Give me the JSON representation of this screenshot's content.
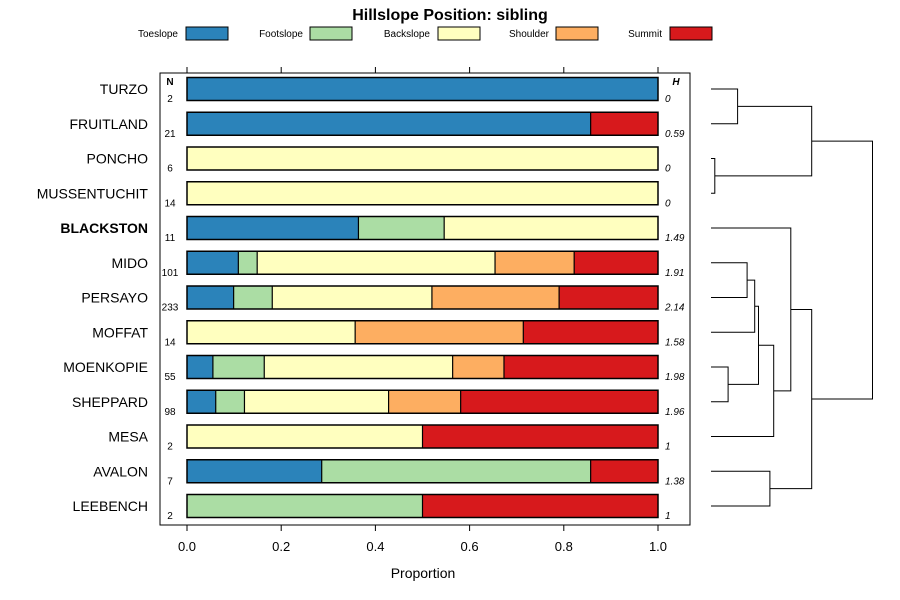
{
  "chart_data": {
    "type": "bar",
    "stacked": true,
    "orientation": "horizontal",
    "title": "Hillslope Position: sibling",
    "xlabel": "Proportion",
    "xlim": [
      0,
      1
    ],
    "xticks": [
      "0.0",
      "0.2",
      "0.4",
      "0.6",
      "0.8",
      "1.0"
    ],
    "n_header": "N",
    "h_header": "H",
    "legend_position": "top",
    "categories": [
      "TURZO",
      "FRUITLAND",
      "PONCHO",
      "MUSSENTUCHIT",
      "BLACKSTON",
      "MIDO",
      "PERSAYO",
      "MOFFAT",
      "MOENKOPIE",
      "SHEPPARD",
      "MESA",
      "AVALON",
      "LEEBENCH"
    ],
    "highlighted": "BLACKSTON",
    "n": [
      "2",
      "21",
      "6",
      "14",
      "11",
      "101",
      "233",
      "14",
      "55",
      "98",
      "2",
      "7",
      "2"
    ],
    "h": [
      "0",
      "0.59",
      "0",
      "0",
      "1.49",
      "1.91",
      "2.14",
      "1.58",
      "1.98",
      "1.96",
      "1",
      "1.38",
      "1"
    ],
    "series": [
      {
        "name": "Toeslope",
        "color": "#2b83ba",
        "values": [
          1.0,
          0.857,
          0,
          0,
          0.364,
          0.109,
          0.099,
          0,
          0.055,
          0.061,
          0,
          0.286,
          0
        ]
      },
      {
        "name": "Footslope",
        "color": "#abdda4",
        "values": [
          0,
          0,
          0,
          0,
          0.182,
          0.04,
          0.082,
          0,
          0.109,
          0.061,
          0,
          0.571,
          0.5
        ]
      },
      {
        "name": "Backslope",
        "color": "#ffffbf",
        "values": [
          0,
          0,
          1.0,
          1.0,
          0.454,
          0.505,
          0.339,
          0.357,
          0.4,
          0.306,
          0.5,
          0,
          0
        ]
      },
      {
        "name": "Shoulder",
        "color": "#fdae61",
        "values": [
          0,
          0,
          0,
          0,
          0,
          0.168,
          0.27,
          0.357,
          0.109,
          0.153,
          0,
          0,
          0
        ]
      },
      {
        "name": "Summit",
        "color": "#d7191c",
        "values": [
          0,
          0.143,
          0,
          0,
          0,
          0.178,
          0.21,
          0.286,
          0.327,
          0.419,
          0.5,
          0.143,
          0.5
        ]
      }
    ],
    "dendrogram": {
      "leaf_order": [
        "TURZO",
        "FRUITLAND",
        "PONCHO",
        "MUSSENTUCHIT",
        "BLACKSTON",
        "MIDO",
        "PERSAYO",
        "MOFFAT",
        "MOENKOPIE",
        "SHEPPARD",
        "MESA",
        "AVALON",
        "LEEBENCH"
      ],
      "merges": [
        {
          "a": "PONCHO",
          "b": "MUSSENTUCHIT",
          "height": 0.02
        },
        {
          "a": "MIDO",
          "b": "PERSAYO",
          "height": 0.19
        },
        {
          "a": "MOENKOPIE",
          "b": "SHEPPARD",
          "height": 0.09
        },
        {
          "a": "TURZO",
          "b": "FRUITLAND",
          "height": 0.14
        },
        {
          "a": "c2",
          "b": "MOFFAT",
          "height": 0.23
        },
        {
          "a": "c5",
          "b": "c3",
          "height": 0.25
        },
        {
          "a": "c6",
          "b": "MESA",
          "height": 0.33
        },
        {
          "a": "BLACKSTON",
          "b": "c7",
          "height": 0.42
        },
        {
          "a": "AVALON",
          "b": "LEEBENCH",
          "height": 0.31
        },
        {
          "a": "c1",
          "b": "c4",
          "height": 0.53
        },
        {
          "a": "c8",
          "b": "c9",
          "height": 0.53
        },
        {
          "a": "c10",
          "b": "c11",
          "height": 0.85
        }
      ]
    }
  }
}
